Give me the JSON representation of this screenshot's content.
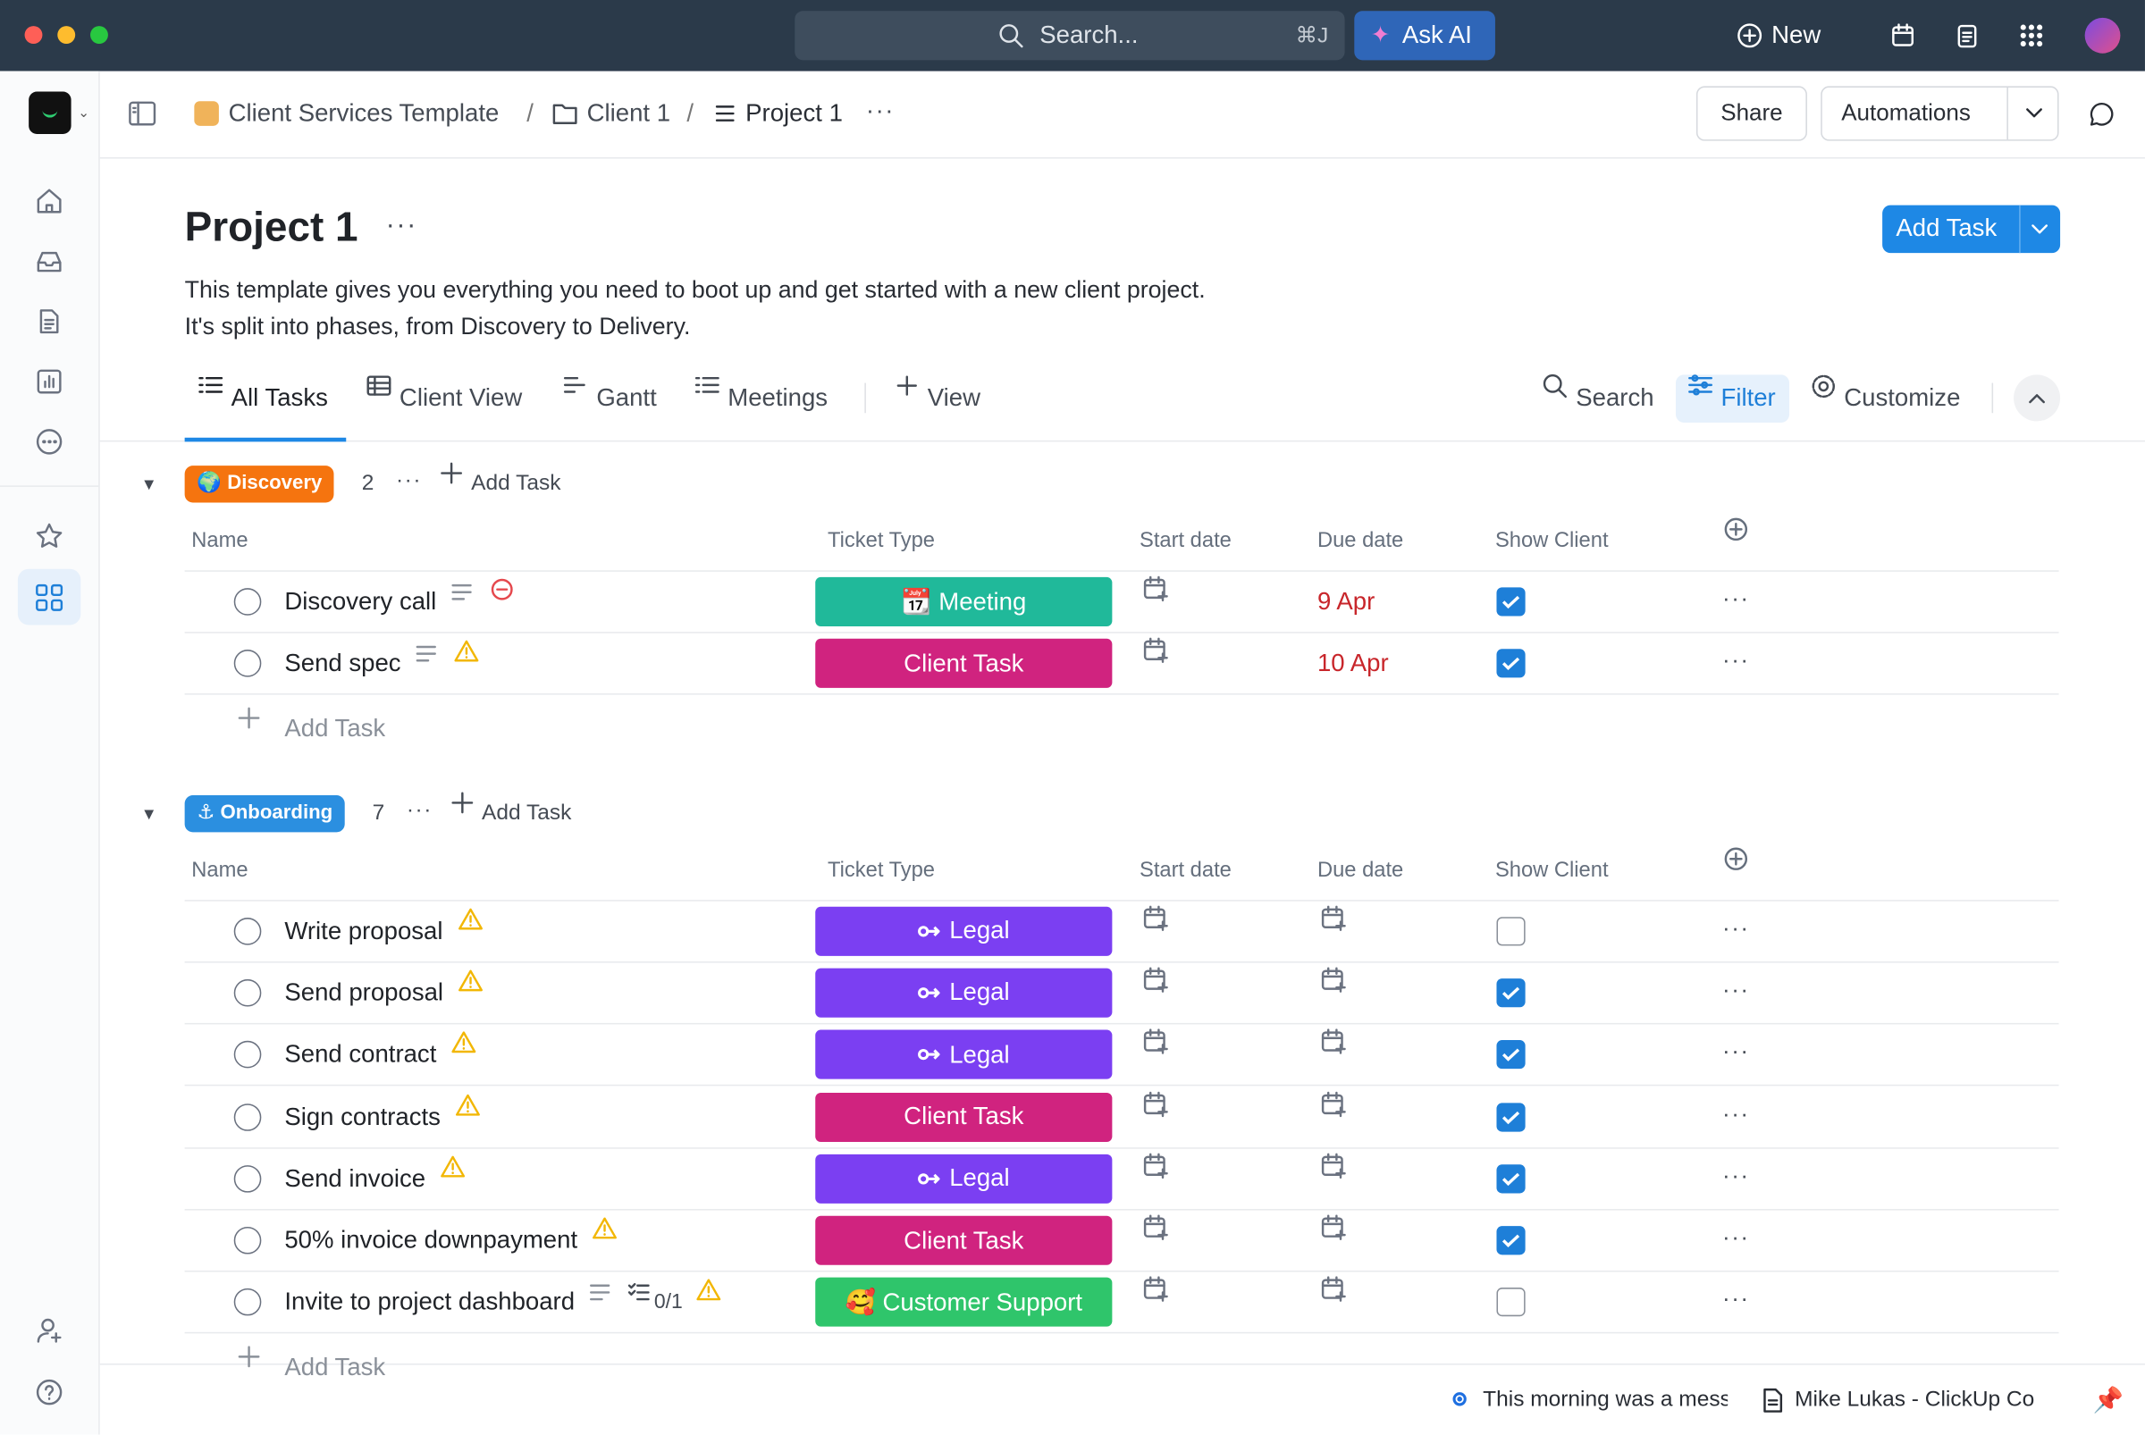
{
  "topbar": {
    "search": "Search...",
    "shortcut": "⌘J",
    "ask_ai": "Ask AI",
    "new": "New"
  },
  "breadcrumb": [
    "Client Services Template",
    "Client 1",
    "Project 1"
  ],
  "header_buttons": {
    "share": "Share",
    "automations": "Automations"
  },
  "page": {
    "title": "Project 1",
    "description": [
      "This template gives you everything you need to boot up and get started with a new client project.",
      "It's split into phases, from Discovery to Delivery."
    ],
    "add_task": "Add Task"
  },
  "views": [
    "All Tasks",
    "Client View",
    "Gantt",
    "Meetings",
    "View"
  ],
  "tools": [
    "Search",
    "Filter",
    "Customize"
  ],
  "columns": [
    "Name",
    "Ticket Type",
    "Start date",
    "Due date",
    "Show Client"
  ],
  "add_task": "Add Task",
  "groups": [
    {
      "name": "🌍 Discovery",
      "color": "#f5740f",
      "count": "2",
      "tasks": [
        {
          "name": "Discovery call",
          "description": true,
          "status_icon": "blocked",
          "ticket_type": "📆 Meeting",
          "ticket_color": "#20b99a",
          "due": "9 Apr",
          "show_client": true
        },
        {
          "name": "Send spec",
          "description": true,
          "status_icon": "warning",
          "ticket_type": "Client Task",
          "ticket_color": "#d0237f",
          "due": "10 Apr",
          "show_client": true
        }
      ]
    },
    {
      "name": "⚓ Onboarding",
      "color": "#2b8fe0",
      "count": "7",
      "tasks": [
        {
          "name": "Write proposal",
          "status_icon": "warning",
          "ticket_type": "Legal",
          "legal_icon": true,
          "ticket_color": "#7b3ff2",
          "show_client": false
        },
        {
          "name": "Send proposal",
          "status_icon": "warning",
          "ticket_type": "Legal",
          "legal_icon": true,
          "ticket_color": "#7b3ff2",
          "show_client": true
        },
        {
          "name": "Send contract",
          "status_icon": "warning",
          "ticket_type": "Legal",
          "legal_icon": true,
          "ticket_color": "#7b3ff2",
          "show_client": true
        },
        {
          "name": "Sign contracts",
          "status_icon": "warning",
          "ticket_type": "Client Task",
          "ticket_color": "#d0237f",
          "show_client": true
        },
        {
          "name": "Send invoice",
          "status_icon": "warning",
          "ticket_type": "Legal",
          "legal_icon": true,
          "ticket_color": "#7b3ff2",
          "show_client": true
        },
        {
          "name": "50% invoice downpayment",
          "status_icon": "warning",
          "ticket_type": "Client Task",
          "ticket_color": "#d0237f",
          "show_client": true
        },
        {
          "name": "Invite to project dashboard",
          "description": true,
          "subtasks": "0/1",
          "status_icon": "warning",
          "ticket_type": "🥰 Customer Support",
          "ticket_color": "#2fc56b",
          "show_client": false
        }
      ]
    }
  ],
  "footer": [
    "This morning was a mess",
    "Mike Lukas - ClickUp Co"
  ]
}
